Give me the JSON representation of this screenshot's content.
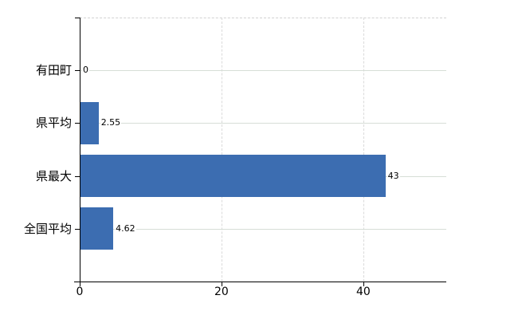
{
  "chart_data": {
    "type": "bar",
    "orientation": "horizontal",
    "title": "",
    "xlabel": "",
    "ylabel": "",
    "categories": [
      "有田町",
      "県平均",
      "県最大",
      "全国平均"
    ],
    "values": [
      0,
      2.55,
      43,
      4.62
    ],
    "value_labels": [
      "0",
      "2.55",
      "43",
      "4.62"
    ],
    "xticks": [
      0,
      20,
      40
    ],
    "xtick_labels": [
      "0",
      "20",
      "40"
    ],
    "xlim": [
      0,
      51.7
    ],
    "legend": false,
    "grid": {
      "horizontal": "solid",
      "vertical": "dashed",
      "plot_top_border": "dashed"
    },
    "colors": {
      "bar": "#3c6db1",
      "horizontal_gridline": "#d7ded7",
      "vertical_gridline": "#dadada",
      "axis": "#000000",
      "text": "#000000",
      "background": "#ffffff"
    }
  }
}
